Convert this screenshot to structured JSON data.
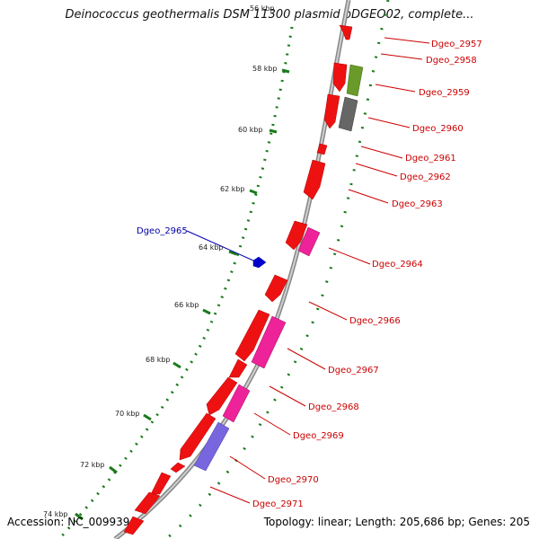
{
  "title": "Deinococcus geothermalis DSM 11300 plasmid pDGEO02, complete...",
  "footer": {
    "accession": "Accession: NC_009939",
    "summary": "Topology: linear; Length: 205,686 bp; Genes: 205"
  },
  "scale_labels": [
    "56 kbp",
    "58 kbp",
    "60 kbp",
    "62 kbp",
    "64 kbp",
    "66 kbp",
    "68 kbp",
    "70 kbp",
    "72 kbp",
    "74 kbp"
  ],
  "gene_labels": {
    "right": [
      "Dgeo_2957",
      "Dgeo_2958",
      "Dgeo_2959",
      "Dgeo_2960",
      "Dgeo_2961",
      "Dgeo_2962",
      "Dgeo_2963",
      "Dgeo_2964",
      "Dgeo_2966",
      "Dgeo_2967",
      "Dgeo_2968",
      "Dgeo_2969",
      "Dgeo_2970",
      "Dgeo_2971"
    ],
    "left": [
      "Dgeo_2965"
    ]
  },
  "colors": {
    "gene_cds": "#ee1111",
    "gene_pink": "#ee2299",
    "gene_green": "#6a9a2a",
    "gene_gray": "#666666",
    "gene_purple": "#7766dd",
    "gene_blue": "#0000cc",
    "label_right": "#cc0000",
    "label_left": "#0000aa",
    "tick": "#1a7a1a",
    "backbone": "#888888"
  }
}
